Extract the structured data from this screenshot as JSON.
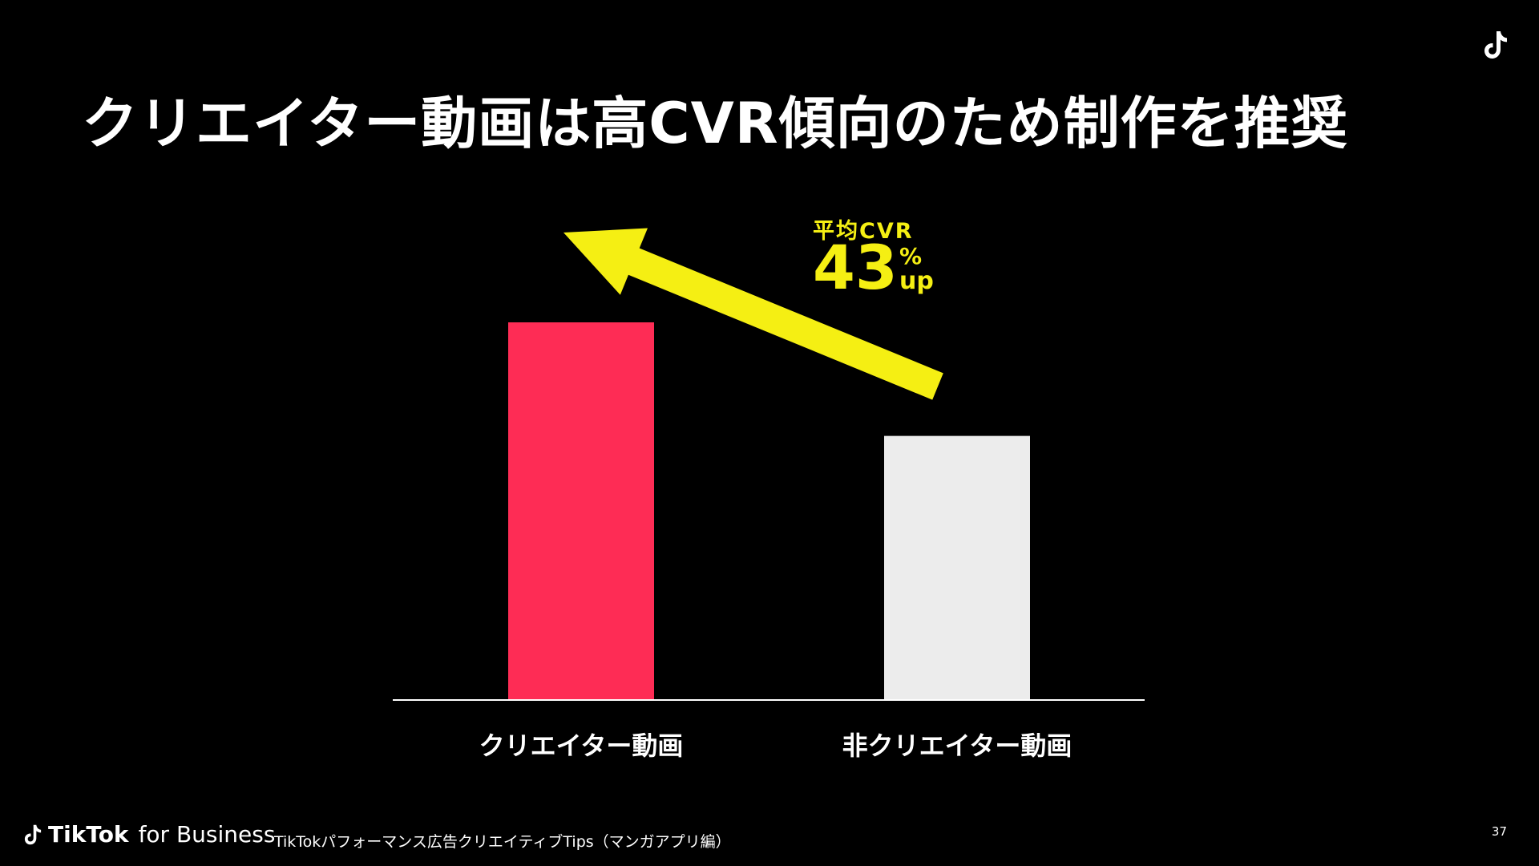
{
  "slide": {
    "title": "クリエイター動画は高CVR傾向のため制作を推奨",
    "page_number": "37"
  },
  "annotation": {
    "label": "平均CVR",
    "value": "43",
    "unit_percent": "%",
    "unit_up": "up",
    "arrow_color": "#f5ef13"
  },
  "footer": {
    "brand_tiktok": "TikTok",
    "brand_suffix": "for Business",
    "document_title": "TikTokパフォーマンス広告クリエイティブTips（マンガアプリ編）"
  },
  "colors": {
    "background": "#000000",
    "creator_bar": "#fe2c55",
    "non_creator_bar": "#ececec",
    "accent_yellow": "#f5ef13",
    "text": "#ffffff"
  },
  "icons": {
    "corner": "tiktok-logo-icon",
    "footer": "tiktok-logo-icon",
    "annotation": "arrow-up-left-icon"
  },
  "chart_data": {
    "type": "bar",
    "title": "",
    "xlabel": "",
    "ylabel": "",
    "categories": [
      "クリエイター動画",
      "非クリエイター動画"
    ],
    "values": [
      1.43,
      1.0
    ],
    "ylim": [
      0,
      1.43
    ],
    "grid": false,
    "legend": "none",
    "axis_ticks_shown": false,
    "bar_colors": [
      "#fe2c55",
      "#ececec"
    ]
  }
}
